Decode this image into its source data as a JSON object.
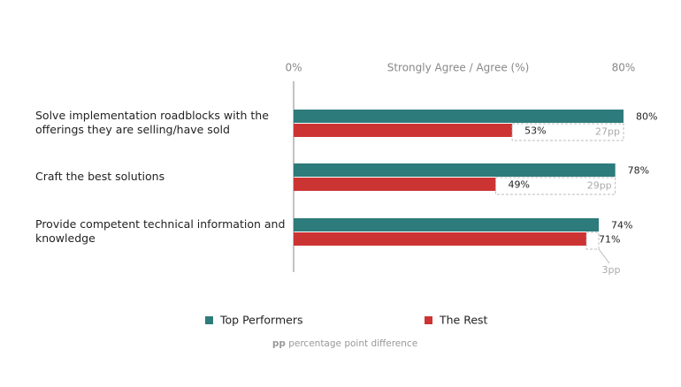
{
  "chart_data": {
    "type": "bar",
    "orientation": "horizontal",
    "xlabel": "Strongly Agree / Agree (%)",
    "categories": [
      "Solve implementation roadblocks with the offerings they are selling/have sold",
      "Craft the best solutions",
      "Provide competent technical information and knowledge"
    ],
    "series": [
      {
        "name": "Top Performers",
        "color": "#2e7b7b",
        "values": [
          80,
          78,
          74
        ],
        "value_labels": [
          "80%",
          "78%",
          "74%"
        ]
      },
      {
        "name": "The Rest",
        "color": "#cc3333",
        "values": [
          53,
          49,
          71
        ],
        "value_labels": [
          "53%",
          "49%",
          "71%"
        ]
      }
    ],
    "differences": [
      27,
      29,
      3
    ],
    "difference_labels": [
      "27pp",
      "29pp",
      "3pp"
    ],
    "xlim": [
      0,
      80
    ],
    "xticks": [
      {
        "value": 0,
        "label": "0%"
      },
      {
        "value": 80,
        "label": "80%"
      }
    ],
    "note": {
      "abbr": "pp",
      "text": "percentage point difference"
    }
  }
}
